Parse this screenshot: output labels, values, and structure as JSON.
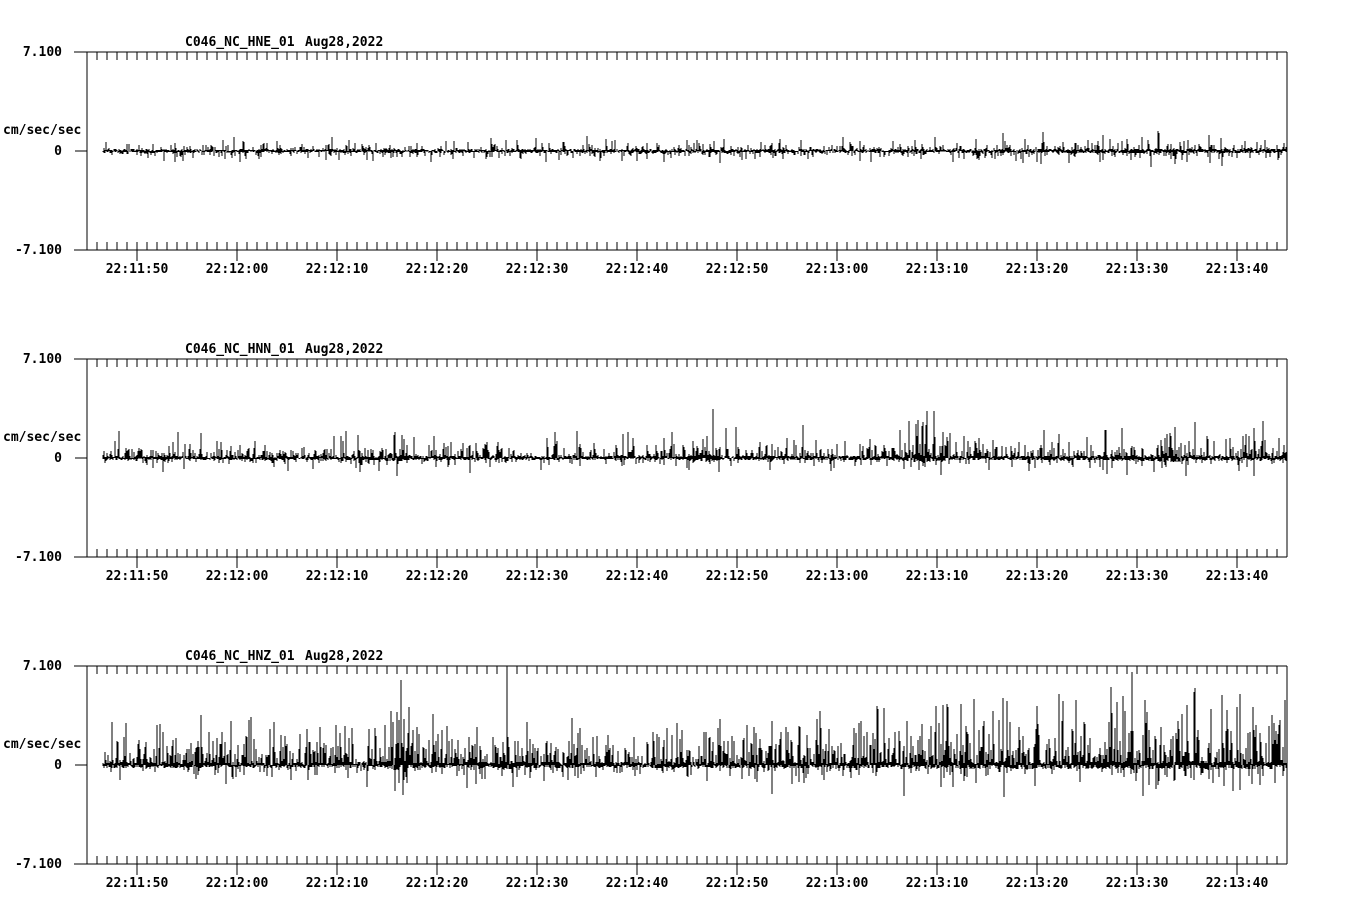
{
  "colors": {
    "background": "#ffffff",
    "trace": "#000000",
    "axis": "#000000"
  },
  "chart_data": [
    {
      "type": "line",
      "title": "C046_NC_HNE_01",
      "date_label": "Aug28,2022",
      "ylabel": "cm/sec/sec",
      "ylim": [
        -7.1,
        7.1
      ],
      "ytick_labels": {
        "max": "7.100",
        "zero": "0",
        "min": "-7.100"
      },
      "x_window_seconds": 120,
      "xtick_labels": [
        "22:11:50",
        "22:12:00",
        "22:12:10",
        "22:12:20",
        "22:12:30",
        "22:12:40",
        "22:12:50",
        "22:13:00",
        "22:13:10",
        "22:13:20",
        "22:13:30",
        "22:13:40"
      ],
      "xtick_offsets_sec": [
        5,
        15,
        25,
        35,
        45,
        55,
        65,
        75,
        85,
        95,
        105,
        115
      ],
      "minor_tick_interval_sec": 1,
      "grid": false,
      "waveform": {
        "seed": 101,
        "band": 0.12,
        "spike_prob": 0.3,
        "spike_scale": 0.22,
        "spike_cap": 1.0,
        "up_bias": 0.5,
        "down_scale": 0.9,
        "down_cap": 0.8,
        "envelope": [
          [
            0,
            1.0
          ],
          [
            80,
            1.05
          ],
          [
            100,
            1.25
          ],
          [
            120,
            1.35
          ]
        ],
        "events": [
          {
            "t": 104.0,
            "amp": 0.85
          },
          {
            "t": 57.0,
            "amp": 0.6
          },
          {
            "t": 33.0,
            "amp": 0.55
          }
        ]
      }
    },
    {
      "type": "line",
      "title": "C046_NC_HNN_01",
      "date_label": "Aug28,2022",
      "ylabel": "cm/sec/sec",
      "ylim": [
        -7.1,
        7.1
      ],
      "ytick_labels": {
        "max": "7.100",
        "zero": "0",
        "min": "-7.100"
      },
      "x_window_seconds": 120,
      "xtick_labels": [
        "22:11:50",
        "22:12:00",
        "22:12:10",
        "22:12:20",
        "22:12:30",
        "22:12:40",
        "22:12:50",
        "22:13:00",
        "22:13:10",
        "22:13:20",
        "22:13:30",
        "22:13:40"
      ],
      "xtick_offsets_sec": [
        5,
        15,
        25,
        35,
        45,
        55,
        65,
        75,
        85,
        95,
        105,
        115
      ],
      "minor_tick_interval_sec": 1,
      "grid": false,
      "waveform": {
        "seed": 202,
        "band": 0.14,
        "spike_prob": 0.32,
        "spike_scale": 0.38,
        "spike_cap": 1.9,
        "up_bias": 0.68,
        "down_scale": 0.55,
        "down_cap": 1.0,
        "envelope": [
          [
            0,
            1.0
          ],
          [
            55,
            1.0
          ],
          [
            70,
            1.2
          ],
          [
            100,
            1.3
          ],
          [
            120,
            1.4
          ]
        ],
        "events": [
          {
            "t": 30.8,
            "amp": 1.9,
            "burst": 1.2
          },
          {
            "t": 46.0,
            "amp": 1.4
          },
          {
            "t": 62.0,
            "amp": 1.6,
            "burst": 1.0
          },
          {
            "t": 70.0,
            "amp": 1.4
          },
          {
            "t": 83.5,
            "amp": 2.3,
            "burst": 2.0
          },
          {
            "t": 100.0,
            "amp": 1.5
          },
          {
            "t": 108.0,
            "amp": 1.7,
            "burst": 1.5
          },
          {
            "t": 112.0,
            "amp": 1.6
          }
        ]
      }
    },
    {
      "type": "line",
      "title": "C046_NC_HNZ_01",
      "date_label": "Aug28,2022",
      "ylabel": "cm/sec/sec",
      "ylim": [
        -7.1,
        7.1
      ],
      "ytick_labels": {
        "max": "7.100",
        "zero": "0",
        "min": "-7.100"
      },
      "x_window_seconds": 120,
      "xtick_labels": [
        "22:11:50",
        "22:12:00",
        "22:12:10",
        "22:12:20",
        "22:12:30",
        "22:12:40",
        "22:12:50",
        "22:13:00",
        "22:13:10",
        "22:13:20",
        "22:13:30",
        "22:13:40"
      ],
      "xtick_offsets_sec": [
        5,
        15,
        25,
        35,
        45,
        55,
        65,
        75,
        85,
        95,
        105,
        115
      ],
      "minor_tick_interval_sec": 1,
      "grid": false,
      "waveform": {
        "seed": 303,
        "band": 0.2,
        "spike_prob": 0.4,
        "spike_scale": 0.75,
        "spike_cap": 3.4,
        "up_bias": 0.76,
        "down_scale": 0.5,
        "down_cap": 1.7,
        "envelope": [
          [
            0,
            1.0
          ],
          [
            60,
            1.05
          ],
          [
            85,
            1.3
          ],
          [
            100,
            1.55
          ],
          [
            113,
            1.65
          ],
          [
            120,
            1.45
          ]
        ],
        "events": [
          {
            "t": 13.5,
            "amp": 2.4
          },
          {
            "t": 16.0,
            "amp": 2.0
          },
          {
            "t": 22.0,
            "amp": 2.6
          },
          {
            "t": 31.0,
            "amp": 2.9,
            "burst": 1.0
          },
          {
            "t": 33.0,
            "amp": 2.7
          },
          {
            "t": 35.5,
            "amp": 2.5
          },
          {
            "t": 42.0,
            "amp": 6.9,
            "burst": 0.8
          },
          {
            "t": 42.6,
            "amp": -1.6
          },
          {
            "t": 44.0,
            "amp": 3.1
          },
          {
            "t": 57.0,
            "amp": 2.2
          },
          {
            "t": 66.0,
            "amp": 2.9
          },
          {
            "t": 73.0,
            "amp": 3.3
          },
          {
            "t": 79.0,
            "amp": 4.2
          },
          {
            "t": 86.0,
            "amp": 4.4
          },
          {
            "t": 92.0,
            "amp": 4.6
          },
          {
            "t": 95.0,
            "amp": 4.2
          },
          {
            "t": 104.5,
            "amp": 6.7
          },
          {
            "t": 106.0,
            "amp": 3.8
          },
          {
            "t": 110.0,
            "amp": 4.3
          },
          {
            "t": 115.3,
            "amp": 5.1
          },
          {
            "t": 118.5,
            "amp": 3.6
          }
        ]
      }
    }
  ]
}
